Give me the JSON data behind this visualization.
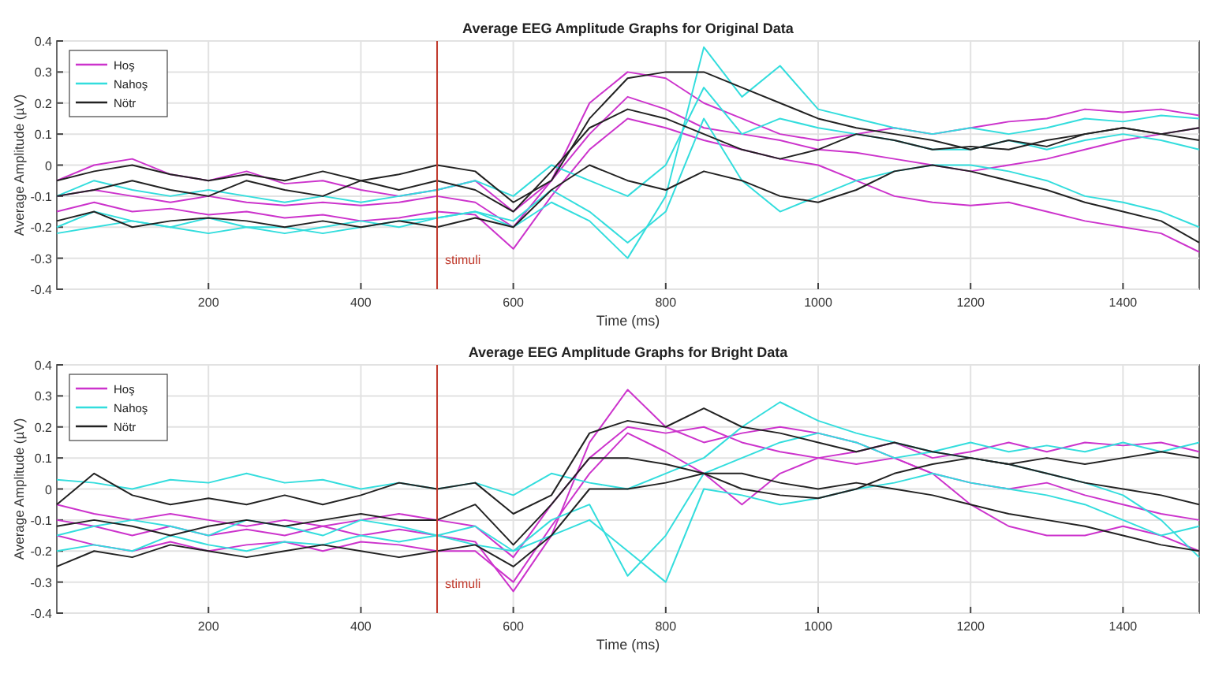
{
  "chart_data": [
    {
      "type": "line",
      "title": "Average EEG Amplitude Graphs for Original Data",
      "xlabel": "Time (ms)",
      "ylabel": "Average Amplitude (µV)",
      "xlim": [
        1,
        1500
      ],
      "ylim": [
        -0.4,
        0.4
      ],
      "xticks": [
        200,
        400,
        600,
        800,
        1000,
        1200,
        1400
      ],
      "yticks": [
        -0.4,
        -0.3,
        -0.2,
        -0.1,
        0,
        0.1,
        0.2,
        0.3,
        0.4
      ],
      "grid": true,
      "legend": "top left",
      "line_style": "solid",
      "marker": "none",
      "x": [
        1,
        50,
        100,
        150,
        200,
        250,
        300,
        350,
        400,
        450,
        500,
        550,
        600,
        650,
        700,
        750,
        800,
        850,
        900,
        950,
        1000,
        1050,
        1100,
        1150,
        1200,
        1250,
        1300,
        1350,
        1400,
        1450,
        1500
      ],
      "ref_lines": [
        {
          "axis": "x",
          "value": 500,
          "label": "stimuli",
          "color": "#c0392b"
        }
      ],
      "series": [
        {
          "name": "Hoş",
          "color": "#cc33cc",
          "values": [
            -0.1,
            -0.08,
            -0.1,
            -0.12,
            -0.1,
            -0.12,
            -0.13,
            -0.12,
            -0.13,
            -0.12,
            -0.1,
            -0.12,
            -0.2,
            -0.05,
            0.2,
            0.3,
            0.28,
            0.2,
            0.15,
            0.1,
            0.08,
            0.1,
            0.12,
            0.1,
            0.12,
            0.14,
            0.15,
            0.18,
            0.17,
            0.18,
            0.16
          ]
        },
        {
          "color": "#cc33cc",
          "values": [
            -0.15,
            -0.12,
            -0.15,
            -0.14,
            -0.16,
            -0.15,
            -0.17,
            -0.16,
            -0.18,
            -0.17,
            -0.15,
            -0.16,
            -0.27,
            -0.1,
            0.05,
            0.15,
            0.12,
            0.08,
            0.05,
            0.02,
            0,
            -0.05,
            -0.1,
            -0.12,
            -0.13,
            -0.12,
            -0.15,
            -0.18,
            -0.2,
            -0.22,
            -0.28
          ]
        },
        {
          "color": "#cc33cc",
          "values": [
            -0.05,
            0,
            0.02,
            -0.03,
            -0.05,
            -0.02,
            -0.06,
            -0.05,
            -0.08,
            -0.1,
            -0.08,
            -0.05,
            -0.15,
            -0.05,
            0.1,
            0.22,
            0.18,
            0.12,
            0.1,
            0.08,
            0.05,
            0.04,
            0.02,
            0,
            -0.02,
            0,
            0.02,
            0.05,
            0.08,
            0.1,
            0.12
          ]
        },
        {
          "name": "Nahoş",
          "color": "#33dddd",
          "values": [
            -0.2,
            -0.15,
            -0.18,
            -0.2,
            -0.17,
            -0.2,
            -0.22,
            -0.2,
            -0.18,
            -0.2,
            -0.17,
            -0.15,
            -0.2,
            -0.12,
            -0.18,
            -0.3,
            -0.1,
            0.38,
            0.22,
            0.32,
            0.18,
            0.15,
            0.12,
            0.1,
            0.12,
            0.1,
            0.12,
            0.15,
            0.14,
            0.16,
            0.15
          ]
        },
        {
          "color": "#33dddd",
          "values": [
            -0.22,
            -0.2,
            -0.18,
            -0.2,
            -0.22,
            -0.2,
            -0.2,
            -0.22,
            -0.2,
            -0.18,
            -0.17,
            -0.15,
            -0.18,
            -0.08,
            -0.15,
            -0.25,
            -0.15,
            0.15,
            -0.05,
            -0.15,
            -0.1,
            -0.05,
            -0.02,
            0,
            0,
            -0.02,
            -0.05,
            -0.1,
            -0.12,
            -0.15,
            -0.2
          ]
        },
        {
          "color": "#33dddd",
          "values": [
            -0.1,
            -0.05,
            -0.08,
            -0.1,
            -0.08,
            -0.1,
            -0.12,
            -0.1,
            -0.12,
            -0.1,
            -0.08,
            -0.05,
            -0.1,
            0,
            -0.05,
            -0.1,
            0,
            0.25,
            0.1,
            0.15,
            0.12,
            0.1,
            0.08,
            0.05,
            0.05,
            0.08,
            0.05,
            0.08,
            0.1,
            0.08,
            0.05
          ]
        },
        {
          "name": "Nötr",
          "color": "#222222",
          "values": [
            -0.05,
            -0.02,
            0,
            -0.03,
            -0.05,
            -0.03,
            -0.05,
            -0.02,
            -0.05,
            -0.03,
            0,
            -0.02,
            -0.12,
            -0.05,
            0.15,
            0.28,
            0.3,
            0.3,
            0.25,
            0.2,
            0.15,
            0.12,
            0.1,
            0.08,
            0.05,
            0.08,
            0.06,
            0.1,
            0.12,
            0.1,
            0.12
          ]
        },
        {
          "color": "#222222",
          "values": [
            -0.18,
            -0.15,
            -0.2,
            -0.18,
            -0.17,
            -0.18,
            -0.2,
            -0.18,
            -0.2,
            -0.18,
            -0.2,
            -0.17,
            -0.2,
            -0.08,
            0,
            -0.05,
            -0.08,
            -0.02,
            -0.05,
            -0.1,
            -0.12,
            -0.08,
            -0.02,
            0,
            -0.02,
            -0.05,
            -0.08,
            -0.12,
            -0.15,
            -0.18,
            -0.25
          ]
        },
        {
          "color": "#222222",
          "values": [
            -0.1,
            -0.08,
            -0.05,
            -0.08,
            -0.1,
            -0.05,
            -0.08,
            -0.1,
            -0.05,
            -0.08,
            -0.05,
            -0.08,
            -0.15,
            -0.02,
            0.12,
            0.18,
            0.15,
            0.1,
            0.05,
            0.02,
            0.05,
            0.1,
            0.08,
            0.05,
            0.06,
            0.05,
            0.08,
            0.1,
            0.12,
            0.1,
            0.08
          ]
        }
      ]
    },
    {
      "type": "line",
      "title": "Average EEG Amplitude Graphs for Bright Data",
      "xlabel": "Time (ms)",
      "ylabel": "Average Amplitude (µV)",
      "xlim": [
        1,
        1500
      ],
      "ylim": [
        -0.4,
        0.4
      ],
      "xticks": [
        200,
        400,
        600,
        800,
        1000,
        1200,
        1400
      ],
      "yticks": [
        -0.4,
        -0.3,
        -0.2,
        -0.1,
        0,
        0.1,
        0.2,
        0.3,
        0.4
      ],
      "grid": true,
      "legend": "top left",
      "line_style": "solid",
      "marker": "none",
      "x": [
        1,
        50,
        100,
        150,
        200,
        250,
        300,
        350,
        400,
        450,
        500,
        550,
        600,
        650,
        700,
        750,
        800,
        850,
        900,
        950,
        1000,
        1050,
        1100,
        1150,
        1200,
        1250,
        1300,
        1350,
        1400,
        1450,
        1500
      ],
      "ref_lines": [
        {
          "axis": "x",
          "value": 500,
          "label": "stimuli",
          "color": "#c0392b"
        }
      ],
      "series": [
        {
          "name": "Hoş",
          "color": "#cc33cc",
          "values": [
            -0.1,
            -0.12,
            -0.15,
            -0.12,
            -0.15,
            -0.13,
            -0.15,
            -0.12,
            -0.15,
            -0.13,
            -0.15,
            -0.17,
            -0.33,
            -0.15,
            0.15,
            0.32,
            0.2,
            0.15,
            0.18,
            0.2,
            0.18,
            0.15,
            0.1,
            0.05,
            -0.05,
            -0.12,
            -0.15,
            -0.15,
            -0.12,
            -0.15,
            -0.2
          ]
        },
        {
          "color": "#cc33cc",
          "values": [
            -0.15,
            -0.18,
            -0.2,
            -0.17,
            -0.2,
            -0.18,
            -0.17,
            -0.2,
            -0.17,
            -0.18,
            -0.2,
            -0.2,
            -0.3,
            -0.12,
            0.05,
            0.18,
            0.12,
            0.05,
            -0.05,
            0.05,
            0.1,
            0.12,
            0.15,
            0.1,
            0.12,
            0.15,
            0.12,
            0.15,
            0.14,
            0.15,
            0.12
          ]
        },
        {
          "color": "#cc33cc",
          "values": [
            -0.05,
            -0.08,
            -0.1,
            -0.08,
            -0.1,
            -0.12,
            -0.1,
            -0.12,
            -0.1,
            -0.08,
            -0.1,
            -0.12,
            -0.22,
            -0.05,
            0.1,
            0.2,
            0.18,
            0.2,
            0.15,
            0.12,
            0.1,
            0.08,
            0.1,
            0.05,
            0.02,
            0,
            0.02,
            -0.02,
            -0.05,
            -0.08,
            -0.1
          ]
        },
        {
          "name": "Nahoş",
          "color": "#33dddd",
          "values": [
            0.03,
            0.02,
            0,
            0.03,
            0.02,
            0.05,
            0.02,
            0.03,
            0,
            0.02,
            0,
            0.02,
            -0.02,
            0.05,
            0.02,
            0,
            0.05,
            0.1,
            0.2,
            0.28,
            0.22,
            0.18,
            0.15,
            0.12,
            0.15,
            0.12,
            0.14,
            0.12,
            0.15,
            0.12,
            0.15
          ]
        },
        {
          "color": "#33dddd",
          "values": [
            -0.15,
            -0.12,
            -0.1,
            -0.12,
            -0.15,
            -0.1,
            -0.12,
            -0.15,
            -0.1,
            -0.12,
            -0.15,
            -0.12,
            -0.2,
            -0.1,
            -0.05,
            -0.28,
            -0.15,
            0.05,
            0.1,
            0.15,
            0.18,
            0.15,
            0.1,
            0.12,
            0.1,
            0.08,
            0.05,
            0.02,
            -0.02,
            -0.1,
            -0.22
          ]
        },
        {
          "color": "#33dddd",
          "values": [
            -0.2,
            -0.18,
            -0.2,
            -0.15,
            -0.18,
            -0.2,
            -0.17,
            -0.18,
            -0.15,
            -0.17,
            -0.15,
            -0.18,
            -0.2,
            -0.15,
            -0.1,
            -0.2,
            -0.3,
            0,
            -0.02,
            -0.05,
            -0.03,
            0,
            0.02,
            0.05,
            0.02,
            0,
            -0.02,
            -0.05,
            -0.1,
            -0.15,
            -0.12
          ]
        },
        {
          "name": "Nötr",
          "color": "#222222",
          "values": [
            -0.05,
            0.05,
            -0.02,
            -0.05,
            -0.03,
            -0.05,
            -0.02,
            -0.05,
            -0.02,
            0.02,
            0,
            0.02,
            -0.08,
            -0.02,
            0.18,
            0.22,
            0.2,
            0.26,
            0.2,
            0.18,
            0.15,
            0.12,
            0.15,
            0.12,
            0.1,
            0.08,
            0.1,
            0.08,
            0.1,
            0.12,
            0.1
          ]
        },
        {
          "color": "#222222",
          "values": [
            -0.25,
            -0.2,
            -0.22,
            -0.18,
            -0.2,
            -0.22,
            -0.2,
            -0.18,
            -0.2,
            -0.22,
            -0.2,
            -0.18,
            -0.25,
            -0.15,
            0,
            0,
            0.02,
            0.05,
            0,
            -0.02,
            -0.03,
            0,
            0.05,
            0.08,
            0.1,
            0.08,
            0.05,
            0.02,
            0,
            -0.02,
            -0.05
          ]
        },
        {
          "color": "#222222",
          "values": [
            -0.12,
            -0.1,
            -0.12,
            -0.15,
            -0.12,
            -0.1,
            -0.12,
            -0.1,
            -0.08,
            -0.1,
            -0.1,
            -0.05,
            -0.18,
            -0.05,
            0.1,
            0.1,
            0.08,
            0.05,
            0.05,
            0.02,
            0,
            0.02,
            0,
            -0.02,
            -0.05,
            -0.08,
            -0.1,
            -0.12,
            -0.15,
            -0.18,
            -0.2
          ]
        }
      ]
    }
  ]
}
